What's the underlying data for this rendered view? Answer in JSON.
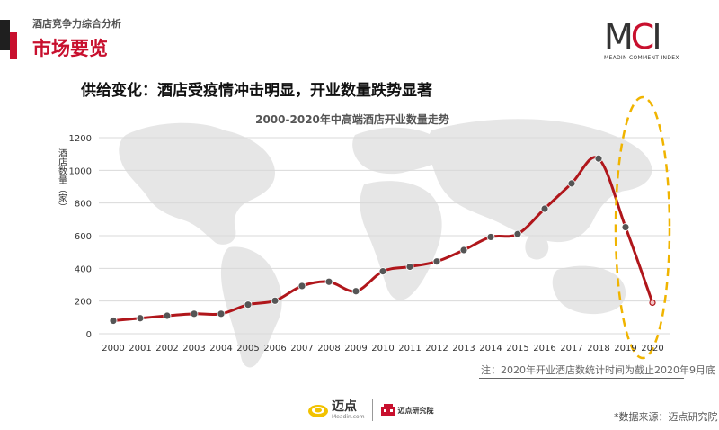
{
  "header": {
    "kicker": "酒店竞争力综合分析",
    "section_title": "市场要览"
  },
  "brand": {
    "logo_word_dark": "M",
    "logo_word_red": "C",
    "logo_word_dark2": "I",
    "logo_sub": "MEADIN COMMENT INDEX",
    "accent_color": "#c8102e"
  },
  "headline": "供给变化：酒店受疫情冲击明显，开业数量跌势显著",
  "chart_data": {
    "type": "line",
    "title": "2000-2020年中高端酒店开业数量走势",
    "ylabel": "酒店数量（家）",
    "xlabel": "",
    "ylim": [
      0,
      1200
    ],
    "yticks": [
      0,
      200,
      400,
      600,
      800,
      1000,
      1200
    ],
    "categories": [
      "2000",
      "2001",
      "2002",
      "2003",
      "2004",
      "2005",
      "2006",
      "2007",
      "2008",
      "2009",
      "2010",
      "2011",
      "2012",
      "2013",
      "2014",
      "2015",
      "2016",
      "2017",
      "2018",
      "2019",
      "2020"
    ],
    "series": [
      {
        "values": [
          80,
          95,
          110,
          122,
          122,
          178,
          202,
          292,
          318,
          260,
          382,
          410,
          442,
          512,
          592,
          610,
          765,
          920,
          1072,
          652,
          190
        ],
        "color": "#b0161b",
        "marker_color": "#555555"
      }
    ],
    "grid": true,
    "highlight_color": "#f0b400"
  },
  "footnote": "注：2020年开业酒店数统计时间为截止2020年9月底",
  "source": "*数据来源：迈点研究院",
  "footer": {
    "maidian_name": "迈点",
    "maidian_url": "Meadin.com",
    "institute_name": "迈点研究院"
  }
}
